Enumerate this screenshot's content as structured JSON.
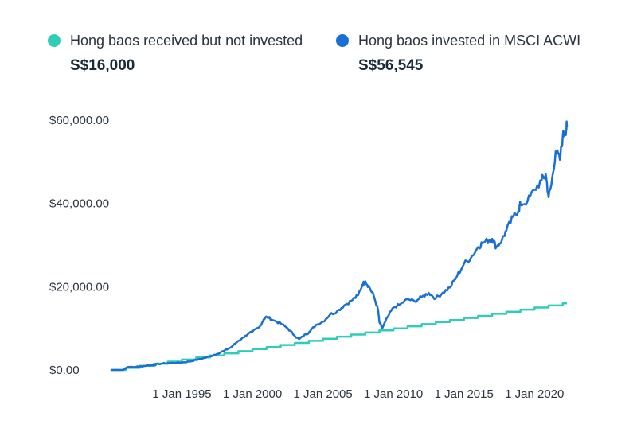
{
  "legend": {
    "series_a": {
      "label": "Hong baos received but not invested",
      "value": "S$16,000",
      "color": "#2ecdb8"
    },
    "series_b": {
      "label": "Hong baos invested in MSCI ACWI",
      "value": "S$56,545",
      "color": "#1a6fd4"
    }
  },
  "chart_data": {
    "type": "line",
    "title": "",
    "xlabel": "",
    "ylabel": "",
    "ylim": [
      0,
      60000
    ],
    "xlim": [
      1990.0,
      2022.3
    ],
    "y_ticks": [
      {
        "value": 0,
        "label": "$0.00"
      },
      {
        "value": 20000,
        "label": "$20,000.00"
      },
      {
        "value": 40000,
        "label": "$40,000.00"
      },
      {
        "value": 60000,
        "label": "$60,000.00"
      }
    ],
    "x_ticks": [
      {
        "value": 1995,
        "label": "1 Jan 1995"
      },
      {
        "value": 2000,
        "label": "1 Jan 2000"
      },
      {
        "value": 2005,
        "label": "1 Jan 2005"
      },
      {
        "value": 2010,
        "label": "1 Jan 2010"
      },
      {
        "value": 2015,
        "label": "1 Jan 2015"
      },
      {
        "value": 2020,
        "label": "1 Jan 2020"
      }
    ],
    "grid": false,
    "legend_position": "top",
    "series": [
      {
        "name": "Hong baos received but not invested",
        "color": "#2ecdb8",
        "step": true,
        "start_year": 1990,
        "end_year": 2022.3,
        "start_value": 0,
        "step_value": 500
      },
      {
        "name": "Hong baos invested in MSCI ACWI",
        "color": "#1a6fd4",
        "points": [
          [
            1990.0,
            0
          ],
          [
            1990.8,
            0
          ],
          [
            1991.2,
            700
          ],
          [
            1992.0,
            800
          ],
          [
            1992.5,
            1100
          ],
          [
            1993.0,
            1150
          ],
          [
            1993.3,
            1450
          ],
          [
            1994.0,
            1650
          ],
          [
            1994.5,
            1700
          ],
          [
            1995.0,
            1800
          ],
          [
            1995.5,
            2000
          ],
          [
            1996.0,
            2400
          ],
          [
            1996.5,
            2800
          ],
          [
            1997.0,
            3300
          ],
          [
            1997.5,
            3900
          ],
          [
            1998.0,
            4600
          ],
          [
            1998.5,
            5500
          ],
          [
            1999.0,
            7000
          ],
          [
            1999.5,
            8200
          ],
          [
            2000.0,
            9200
          ],
          [
            2000.5,
            10300
          ],
          [
            2000.8,
            12200
          ],
          [
            2001.0,
            12800
          ],
          [
            2001.5,
            11900
          ],
          [
            2002.0,
            11200
          ],
          [
            2002.5,
            10000
          ],
          [
            2003.0,
            8200
          ],
          [
            2003.3,
            7400
          ],
          [
            2003.8,
            8600
          ],
          [
            2004.0,
            9000
          ],
          [
            2004.5,
            10800
          ],
          [
            2005.0,
            11600
          ],
          [
            2005.5,
            13300
          ],
          [
            2006.0,
            14100
          ],
          [
            2006.5,
            15500
          ],
          [
            2007.0,
            16600
          ],
          [
            2007.5,
            18000
          ],
          [
            2007.8,
            20500
          ],
          [
            2008.0,
            21300
          ],
          [
            2008.3,
            19800
          ],
          [
            2008.6,
            17800
          ],
          [
            2008.9,
            14500
          ],
          [
            2009.0,
            11500
          ],
          [
            2009.2,
            10000
          ],
          [
            2009.6,
            12800
          ],
          [
            2010.0,
            15000
          ],
          [
            2010.5,
            15800
          ],
          [
            2011.0,
            17000
          ],
          [
            2011.5,
            16500
          ],
          [
            2012.0,
            17500
          ],
          [
            2012.5,
            18500
          ],
          [
            2013.0,
            17200
          ],
          [
            2013.5,
            18600
          ],
          [
            2014.0,
            19800
          ],
          [
            2014.5,
            22500
          ],
          [
            2015.0,
            25500
          ],
          [
            2015.5,
            27000
          ],
          [
            2016.0,
            29500
          ],
          [
            2016.3,
            30500
          ],
          [
            2016.8,
            31200
          ],
          [
            2017.0,
            31500
          ],
          [
            2017.3,
            29500
          ],
          [
            2017.7,
            31300
          ],
          [
            2018.0,
            33500
          ],
          [
            2018.5,
            36800
          ],
          [
            2018.9,
            38700
          ],
          [
            2019.0,
            39800
          ],
          [
            2019.5,
            40500
          ],
          [
            2020.0,
            43300
          ],
          [
            2020.5,
            45500
          ],
          [
            2020.8,
            47000
          ],
          [
            2021.0,
            41500
          ],
          [
            2021.2,
            44500
          ],
          [
            2021.5,
            52500
          ],
          [
            2021.8,
            50500
          ],
          [
            2022.0,
            56000
          ],
          [
            2022.2,
            57500
          ],
          [
            2022.3,
            58500
          ]
        ]
      }
    ]
  }
}
